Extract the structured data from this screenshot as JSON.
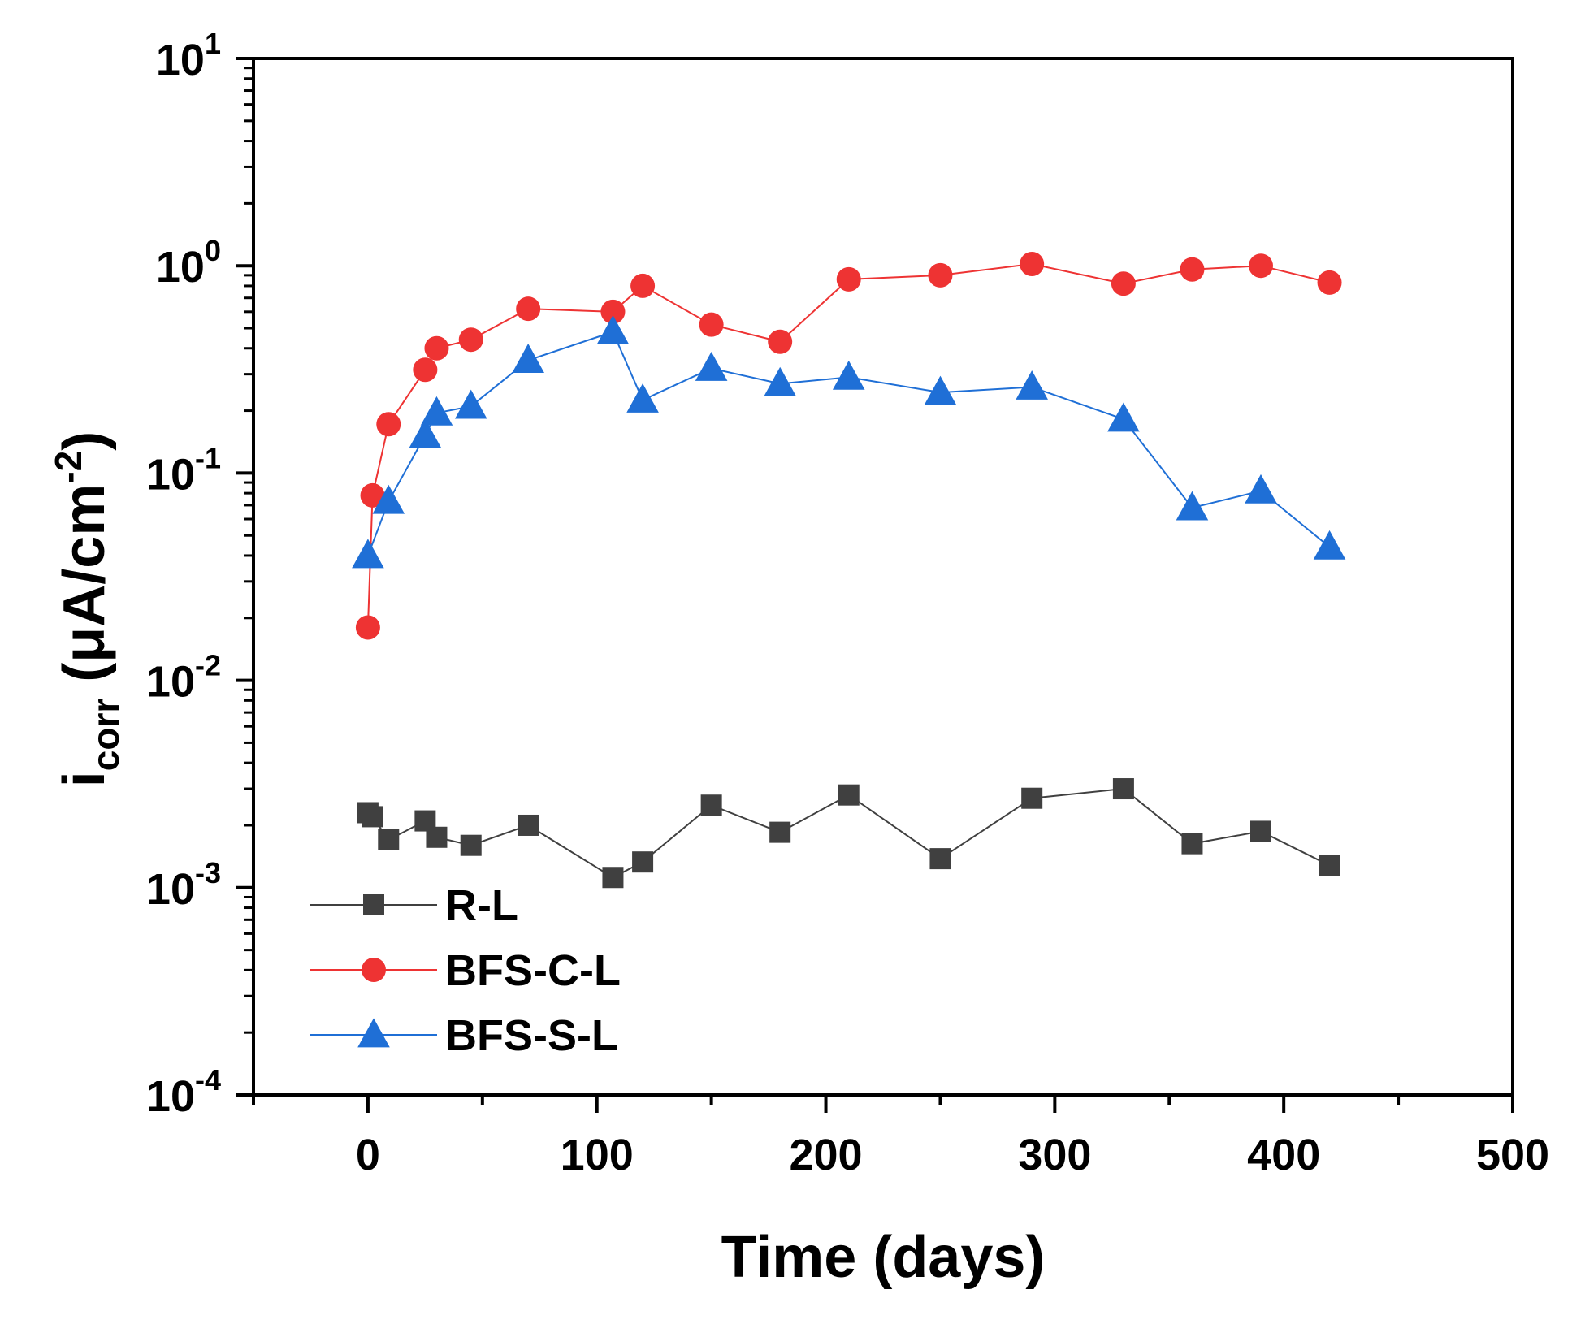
{
  "chart_data": {
    "type": "line",
    "title": "",
    "xlabel": "Time (days)",
    "ylabel": {
      "main": "i",
      "subscript": "corr",
      "unit": " (μA/cm",
      "unit_superscript": "-2",
      "unit_close": ")"
    },
    "xlim": [
      -50,
      500
    ],
    "ylim": [
      0.0001,
      10
    ],
    "yscale": "log",
    "grid": false,
    "legend_position": "bottom-left",
    "x_ticks": [
      0,
      100,
      200,
      300,
      400,
      500
    ],
    "x_tick_labels": [
      "0",
      "100",
      "200",
      "300",
      "400",
      "500"
    ],
    "y_ticks": [
      {
        "value": 0.0001,
        "base": "10",
        "exp": "-4"
      },
      {
        "value": 0.001,
        "base": "10",
        "exp": "-3"
      },
      {
        "value": 0.01,
        "base": "10",
        "exp": "-2"
      },
      {
        "value": 0.1,
        "base": "10",
        "exp": "-1"
      },
      {
        "value": 1,
        "base": "10",
        "exp": "0"
      },
      {
        "value": 10,
        "base": "10",
        "exp": "1"
      }
    ],
    "series": [
      {
        "name": "R-L",
        "color": "#404040",
        "marker": "square",
        "x": [
          0,
          2,
          9,
          25,
          30,
          45,
          70,
          107,
          120,
          150,
          180,
          210,
          250,
          290,
          330,
          360,
          390,
          420
        ],
        "y": [
          0.0023,
          0.0022,
          0.0017,
          0.0021,
          0.00175,
          0.0016,
          0.002,
          0.00112,
          0.00133,
          0.0025,
          0.00185,
          0.0028,
          0.00138,
          0.0027,
          0.003,
          0.00163,
          0.00187,
          0.00128
        ]
      },
      {
        "name": "BFS-C-L",
        "color": "#ee3333",
        "marker": "circle",
        "x": [
          0,
          2,
          9,
          25,
          30,
          45,
          70,
          107,
          120,
          150,
          180,
          210,
          250,
          290,
          330,
          360,
          390,
          420
        ],
        "y": [
          0.018,
          0.078,
          0.172,
          0.315,
          0.4,
          0.44,
          0.62,
          0.6,
          0.8,
          0.52,
          0.43,
          0.86,
          0.9,
          1.02,
          0.82,
          0.96,
          1.0,
          0.83
        ]
      },
      {
        "name": "BFS-S-L",
        "color": "#1f6fd6",
        "marker": "triangle",
        "x": [
          0,
          9,
          25,
          30,
          45,
          70,
          107,
          120,
          150,
          180,
          210,
          250,
          290,
          330,
          360,
          390,
          420
        ],
        "y": [
          0.04,
          0.073,
          0.152,
          0.195,
          0.21,
          0.35,
          0.48,
          0.225,
          0.32,
          0.27,
          0.29,
          0.245,
          0.26,
          0.182,
          0.068,
          0.082,
          0.044
        ]
      }
    ]
  }
}
